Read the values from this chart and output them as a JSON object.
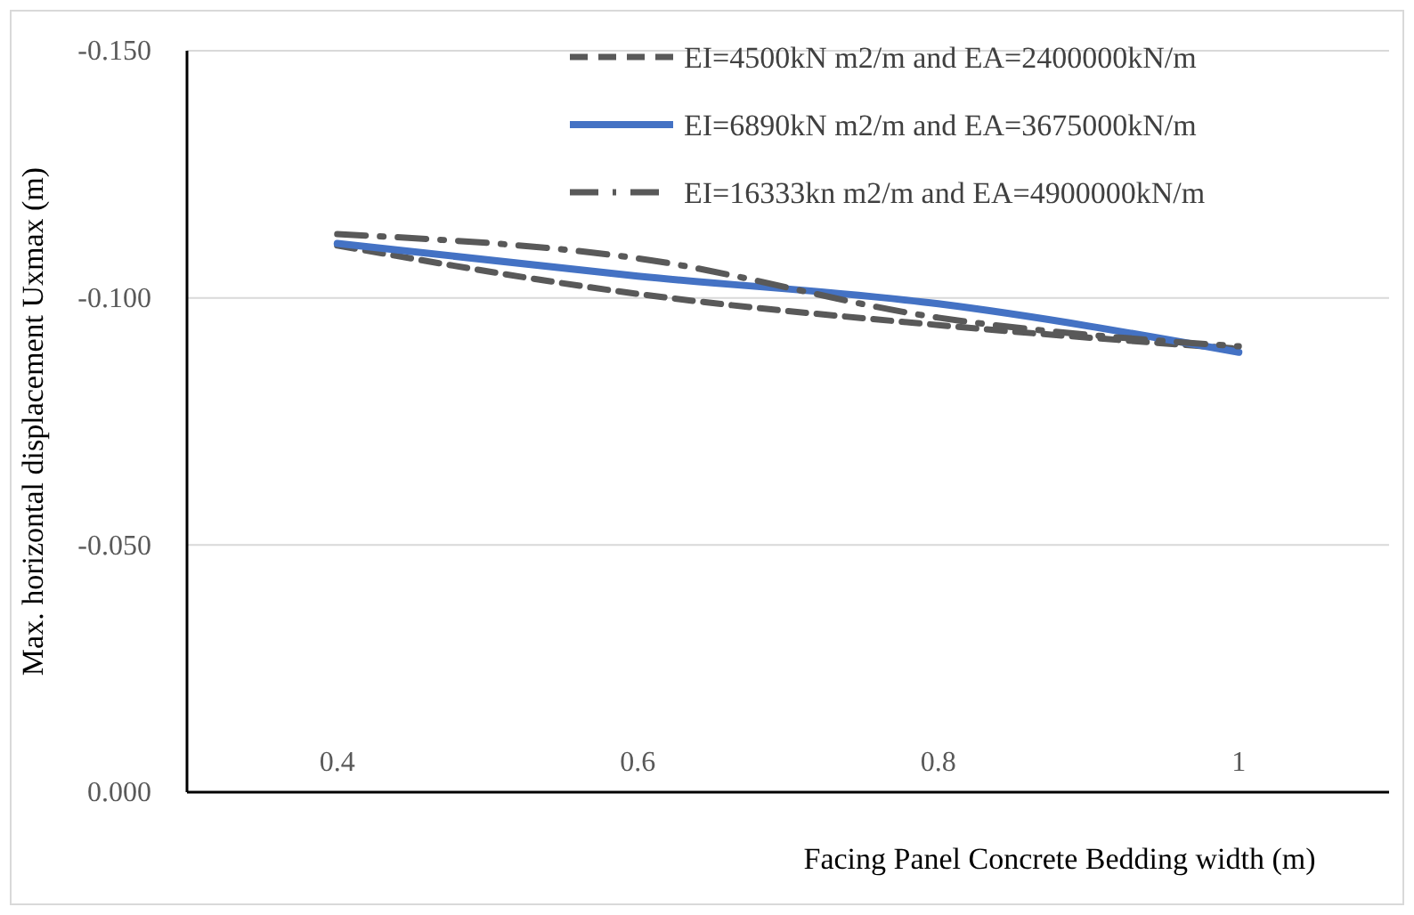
{
  "chart_data": {
    "type": "line",
    "xlabel": "Facing Panel Concrete Bedding width (m)",
    "ylabel": "Max. horizontal displacement Uxmax (m)",
    "x": [
      0.4,
      0.6,
      0.8,
      1
    ],
    "xlim": [
      0.3,
      1.1
    ],
    "xticks": [
      0.4,
      0.6,
      0.8,
      1
    ],
    "ylim": [
      0,
      -0.15
    ],
    "yticks": [
      {
        "value": 0,
        "label": "0.000"
      },
      {
        "value": -0.05,
        "label": "-0.050"
      },
      {
        "value": -0.1,
        "label": "-0.100"
      },
      {
        "value": -0.15,
        "label": "-0.150"
      }
    ],
    "grid": "y",
    "legend": "top right",
    "series": [
      {
        "name": "EI=4500kN m2/m and EA=2400000kN/m",
        "color": "#595959",
        "line_style": "dashed",
        "values": [
          -0.1106,
          -0.1008,
          -0.0945,
          -0.0897
        ]
      },
      {
        "name": "EI=6890kN m2/m and EA=3675000kN/m",
        "color": "#4472c4",
        "line_style": "solid",
        "values": [
          -0.111,
          -0.1044,
          -0.0988,
          -0.089
        ]
      },
      {
        "name": "EI=16333kn m2/m and EA=4900000kN/m",
        "color": "#595959",
        "line_style": "dashdot",
        "values": [
          -0.1129,
          -0.108,
          -0.096,
          -0.0902
        ]
      }
    ]
  }
}
